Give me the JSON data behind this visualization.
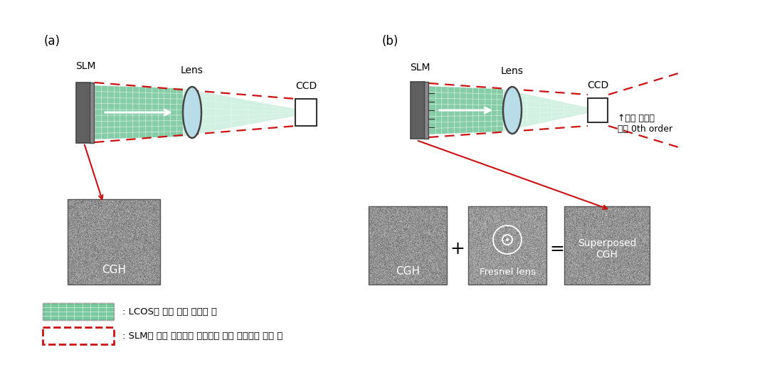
{
  "bg_color": "#ffffff",
  "label_a": "(a)",
  "label_b": "(b)",
  "slm_label": "SLM",
  "lens_label": "Lens",
  "ccd_label": "CCD",
  "cgh_label": "CGH",
  "fresnel_label": "Fresnel lens",
  "superposed_label": "Superposed\nCGH",
  "legend_green": ": LCOS에 의해 위상 변조된 빔",
  "legend_red": ": SLM의 표면 유리에서 반사되어 위상 변조되지 못한 빔",
  "annotation_b": "↑표면 반사에\n의한 0th order",
  "green_color": "#5cbd8a",
  "green_light": "#c8eedd",
  "red_dashed": "#cc1111",
  "lens_color": "#b8dce8",
  "slm_color": "#606060",
  "slm_front": "#888888",
  "ccd_color": "#ffffff",
  "gray_box_color": "#909090"
}
